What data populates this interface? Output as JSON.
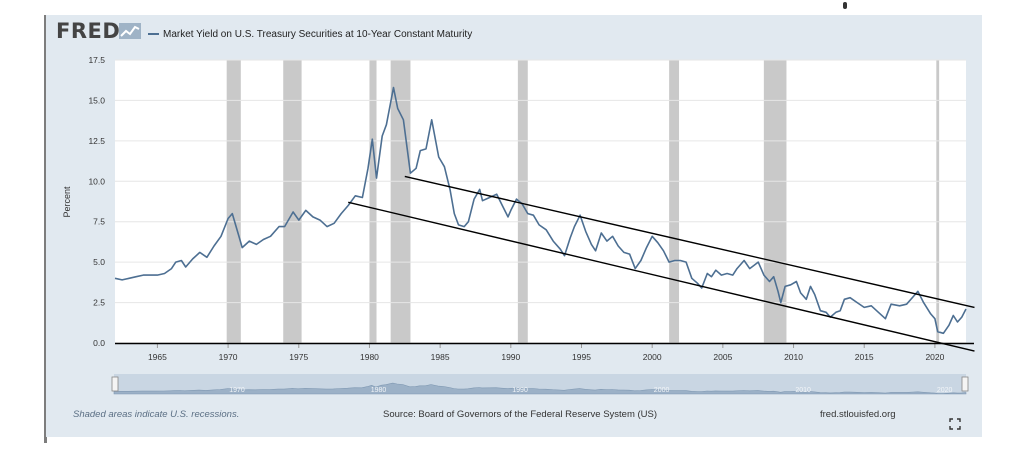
{
  "header": {
    "logo_text": "FRED",
    "logo_icon": "fred-graph-icon",
    "title": "Market Yield on U.S. Treasury Securities at 10-Year Constant Maturity"
  },
  "colors": {
    "series": "#4d6f92",
    "recession": "#c9c9c9",
    "panel": "#e1e9f0",
    "trendline": "#000000"
  },
  "footer": {
    "recessions_note": "Shaded areas indicate U.S. recessions.",
    "source": "Source: Board of Governors of the Federal Reserve System (US)",
    "site": "fred.stlouisfed.org",
    "fullscreen_icon": "fullscreen-icon"
  },
  "chart_data": {
    "type": "line",
    "title": "Market Yield on U.S. Treasury Securities at 10-Year Constant Maturity",
    "ylabel": "Percent",
    "xlim": [
      1962,
      2022.2
    ],
    "ylim": [
      0,
      17.5
    ],
    "yticks": [
      "0.0",
      "2.5",
      "5.0",
      "7.5",
      "10.0",
      "12.5",
      "15.0",
      "17.5"
    ],
    "xticks": [
      "1965",
      "1970",
      "1975",
      "1980",
      "1985",
      "1990",
      "1995",
      "2000",
      "2005",
      "2010",
      "2015",
      "2020"
    ],
    "grid": "horizontal",
    "recessions": [
      [
        1969.9,
        1970.9
      ],
      [
        1973.9,
        1975.2
      ],
      [
        1980.0,
        1980.5
      ],
      [
        1981.5,
        1982.9
      ],
      [
        1990.5,
        1991.2
      ],
      [
        2001.2,
        2001.9
      ],
      [
        2007.9,
        2009.5
      ],
      [
        2020.1,
        2020.3
      ]
    ],
    "series": [
      {
        "x": [
          1962.0,
          1962.5,
          1963.0,
          1963.5,
          1964.0,
          1964.5,
          1965.0,
          1965.5,
          1966.0,
          1966.3,
          1966.7,
          1967.0,
          1967.5,
          1968.0,
          1968.5,
          1969.0,
          1969.5,
          1970.0,
          1970.3,
          1970.8,
          1971.0,
          1971.5,
          1972.0,
          1972.5,
          1973.0,
          1973.6,
          1974.0,
          1974.6,
          1975.0,
          1975.5,
          1976.0,
          1976.5,
          1977.0,
          1977.5,
          1978.0,
          1978.5,
          1979.0,
          1979.5,
          1979.9,
          1980.2,
          1980.5,
          1980.9,
          1981.2,
          1981.7,
          1982.0,
          1982.4,
          1982.9,
          1983.3,
          1983.6,
          1984.0,
          1984.4,
          1984.9,
          1985.3,
          1985.7,
          1986.0,
          1986.3,
          1986.7,
          1987.0,
          1987.4,
          1987.8,
          1988.0,
          1988.5,
          1989.0,
          1989.4,
          1989.8,
          1990.0,
          1990.4,
          1990.8,
          1991.2,
          1991.6,
          1992.0,
          1992.5,
          1993.0,
          1993.5,
          1993.8,
          1994.2,
          1994.5,
          1994.9,
          1995.3,
          1995.7,
          1996.0,
          1996.4,
          1996.8,
          1997.2,
          1997.6,
          1998.0,
          1998.4,
          1998.8,
          1999.2,
          1999.6,
          2000.0,
          2000.4,
          2000.8,
          2001.2,
          2001.6,
          2002.0,
          2002.4,
          2002.8,
          2003.2,
          2003.5,
          2003.9,
          2004.2,
          2004.5,
          2004.9,
          2005.3,
          2005.7,
          2006.0,
          2006.5,
          2006.9,
          2007.2,
          2007.5,
          2007.9,
          2008.3,
          2008.6,
          2008.9,
          2009.1,
          2009.4,
          2009.8,
          2010.2,
          2010.5,
          2010.9,
          2011.2,
          2011.5,
          2011.9,
          2012.3,
          2012.6,
          2013.0,
          2013.3,
          2013.6,
          2014.0,
          2014.5,
          2015.0,
          2015.5,
          2016.0,
          2016.5,
          2016.9,
          2017.5,
          2018.0,
          2018.5,
          2018.8,
          2019.2,
          2019.7,
          2020.0,
          2020.2,
          2020.6,
          2021.0,
          2021.3,
          2021.6,
          2021.9,
          2022.2
        ],
        "values": [
          4.0,
          3.9,
          4.0,
          4.1,
          4.2,
          4.2,
          4.2,
          4.3,
          4.6,
          5.0,
          5.1,
          4.7,
          5.2,
          5.6,
          5.3,
          6.0,
          6.6,
          7.7,
          8.0,
          6.5,
          5.9,
          6.3,
          6.1,
          6.4,
          6.6,
          7.2,
          7.2,
          8.1,
          7.6,
          8.2,
          7.8,
          7.6,
          7.2,
          7.4,
          8.0,
          8.5,
          9.1,
          9.0,
          10.8,
          12.6,
          10.2,
          12.8,
          13.5,
          15.8,
          14.5,
          13.8,
          10.5,
          10.8,
          11.9,
          12.0,
          13.8,
          11.5,
          10.9,
          9.5,
          8.0,
          7.3,
          7.2,
          7.5,
          8.9,
          9.5,
          8.8,
          9.0,
          9.2,
          8.5,
          7.8,
          8.2,
          8.9,
          8.6,
          8.0,
          7.9,
          7.3,
          7.0,
          6.3,
          5.8,
          5.4,
          6.5,
          7.2,
          7.9,
          6.9,
          6.1,
          5.7,
          6.8,
          6.3,
          6.6,
          6.0,
          5.6,
          5.5,
          4.6,
          5.1,
          5.9,
          6.6,
          6.2,
          5.7,
          5.0,
          5.1,
          5.1,
          5.0,
          4.0,
          3.7,
          3.4,
          4.3,
          4.1,
          4.5,
          4.2,
          4.3,
          4.2,
          4.6,
          5.1,
          4.6,
          4.8,
          5.0,
          4.2,
          3.8,
          4.1,
          3.2,
          2.5,
          3.5,
          3.6,
          3.8,
          3.1,
          2.7,
          3.5,
          3.0,
          2.0,
          1.9,
          1.6,
          1.9,
          2.0,
          2.7,
          2.8,
          2.5,
          2.2,
          2.3,
          1.9,
          1.5,
          2.4,
          2.3,
          2.4,
          2.9,
          3.2,
          2.5,
          1.8,
          1.5,
          0.7,
          0.6,
          1.1,
          1.7,
          1.3,
          1.6,
          2.1
        ]
      }
    ],
    "trendlines": [
      {
        "x": [
          1978.5,
          2022.8
        ],
        "y": [
          8.7,
          -0.5
        ]
      },
      {
        "x": [
          1982.5,
          2022.8
        ],
        "y": [
          10.3,
          2.2
        ]
      }
    ],
    "navigator": {
      "ticks": [
        "1970",
        "1980",
        "1990",
        "2000",
        "2010",
        "2020"
      ]
    }
  }
}
